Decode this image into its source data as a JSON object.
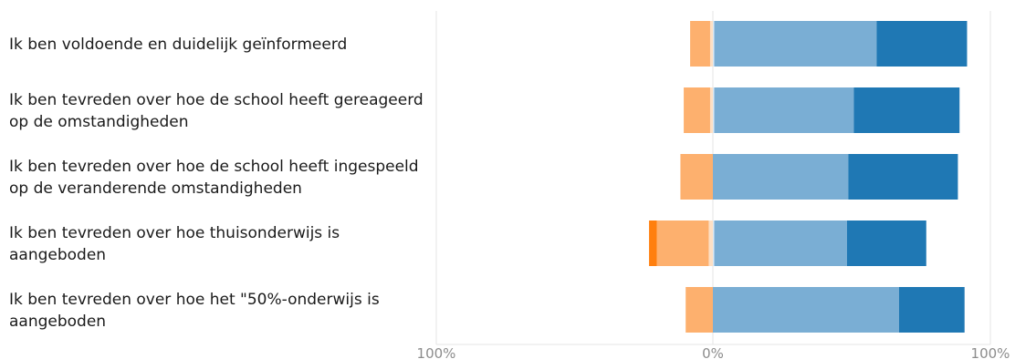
{
  "chart_data": {
    "type": "bar",
    "orientation": "horizontal",
    "stacked": "diverging",
    "title": "",
    "xlabel": "",
    "ylabel": "",
    "xlim": [
      -100,
      100
    ],
    "x_ticks": [
      "100%",
      "0%",
      "100%"
    ],
    "grid": true,
    "categories": [
      [
        "Ik ben voldoende en duidelijk geïnformeerd"
      ],
      [
        "Ik ben tevreden over hoe de school heeft gereageerd",
        "op de omstandigheden"
      ],
      [
        "Ik ben tevreden over hoe de school heeft ingespeeld",
        "op de veranderende omstandigheden"
      ],
      [
        "Ik ben tevreden over hoe thuisonderwijs is",
        "aangeboden"
      ],
      [
        "Ik ben tevreden over hoe het \"50%-onderwijs is",
        "aangeboden"
      ]
    ],
    "series": [
      {
        "side": "negative",
        "color": "#ff7f0e",
        "values": [
          0.0,
          0.0,
          0.0,
          2.8,
          0.0
        ]
      },
      {
        "side": "negative",
        "color": "#fdb06e",
        "values": [
          7.2,
          9.5,
          11.7,
          18.7,
          9.8
        ]
      },
      {
        "side": "negative",
        "color": "#fde0c5",
        "values": [
          1.0,
          1.0,
          0.0,
          1.5,
          0.0
        ]
      },
      {
        "side": "positive",
        "color": "#dce9f3",
        "values": [
          0.5,
          0.5,
          0.0,
          0.5,
          0.0
        ]
      },
      {
        "side": "positive",
        "color": "#7aaed4",
        "values": [
          58.5,
          50.3,
          48.8,
          47.8,
          67.1
        ]
      },
      {
        "side": "positive",
        "color": "#1f78b4",
        "values": [
          32.6,
          38.1,
          39.5,
          28.6,
          23.6
        ]
      }
    ]
  }
}
